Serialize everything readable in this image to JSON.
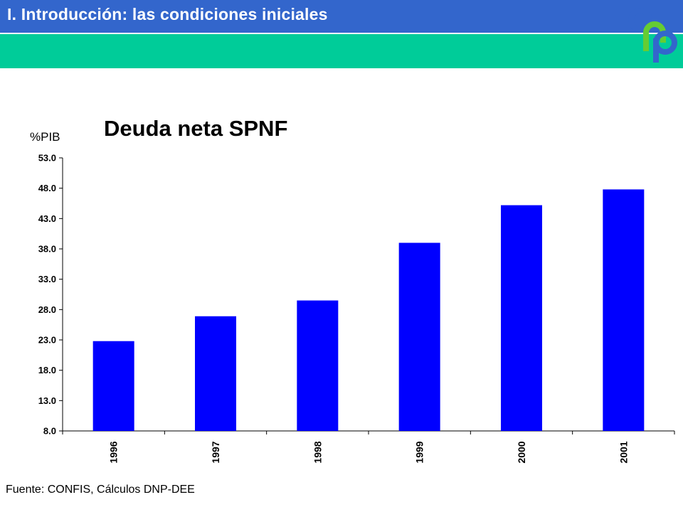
{
  "header": {
    "title": "I.  Introducción: las condiciones iniciales",
    "colors": {
      "bar": "#3366cc",
      "band": "#00cc99"
    }
  },
  "logo": {
    "icon": "dnp-logo-icon",
    "text": "dnp"
  },
  "source": "Fuente: CONFIS, Cálculos DNP-DEE",
  "chart_data": {
    "type": "bar",
    "title": "Deuda neta SPNF",
    "ylabel": "%PIB",
    "xlabel": "",
    "categories": [
      "1996",
      "1997",
      "1998",
      "1999",
      "2000",
      "2001"
    ],
    "values": [
      22.8,
      26.9,
      29.5,
      39.0,
      45.2,
      47.8
    ],
    "ylim": [
      8.0,
      53.0
    ],
    "yticks": [
      "8.0",
      "13.0",
      "18.0",
      "23.0",
      "28.0",
      "33.0",
      "38.0",
      "43.0",
      "48.0",
      "53.0"
    ],
    "bar_color": "#0000ff",
    "grid": false,
    "legend": "none"
  }
}
